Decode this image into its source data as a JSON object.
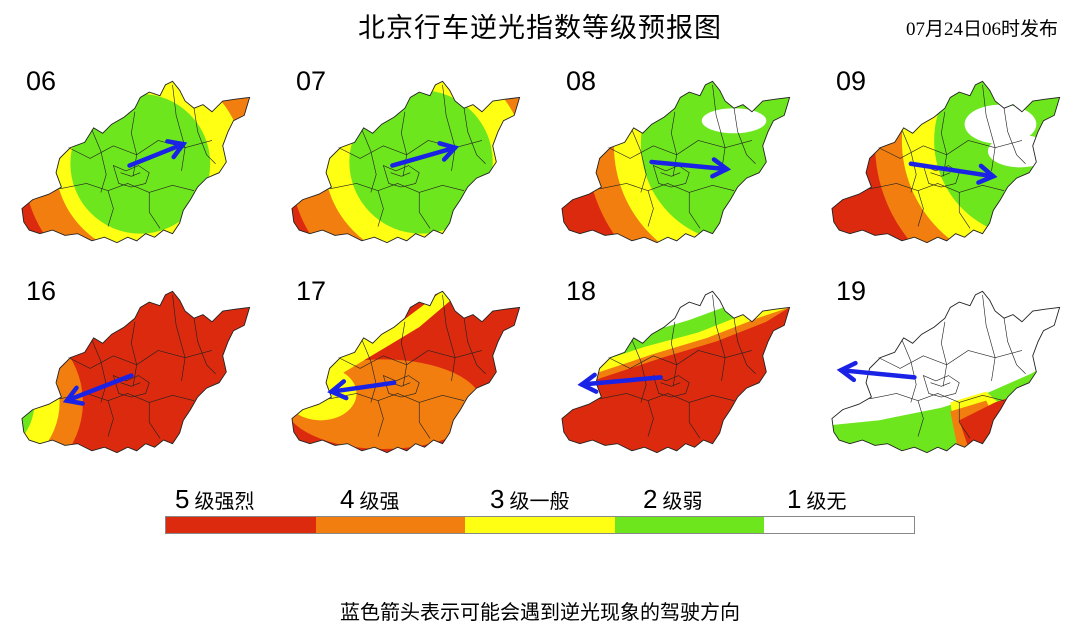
{
  "title": "北京行车逆光指数等级预报图",
  "issued": "07月24日06时发布",
  "colors": {
    "level5": "#dc2a0e",
    "level4": "#f27e10",
    "level3": "#ffff14",
    "level2": "#6de61e",
    "level1": "#ffffff",
    "arrow": "#1a22e6",
    "border": "#222222"
  },
  "panels": [
    {
      "hour": "06",
      "arrow": "east-northeast",
      "levels": [
        5,
        4,
        3,
        2
      ]
    },
    {
      "hour": "07",
      "arrow": "east-northeast",
      "levels": [
        5,
        4,
        3,
        2
      ]
    },
    {
      "hour": "08",
      "arrow": "east",
      "levels": [
        5,
        4,
        3,
        2,
        1
      ]
    },
    {
      "hour": "09",
      "arrow": "east",
      "levels": [
        5,
        4,
        3,
        2,
        1
      ]
    },
    {
      "hour": "16",
      "arrow": "west-southwest",
      "levels": [
        5,
        4,
        3,
        2
      ]
    },
    {
      "hour": "17",
      "arrow": "west",
      "levels": [
        5,
        4,
        3
      ]
    },
    {
      "hour": "18",
      "arrow": "west",
      "levels": [
        5,
        4,
        3,
        2,
        1
      ]
    },
    {
      "hour": "19",
      "arrow": "west-northwest",
      "levels": [
        5,
        4,
        3,
        2,
        1
      ]
    }
  ],
  "legend": [
    {
      "num": "5",
      "label": "级强烈",
      "color": "#dc2a0e"
    },
    {
      "num": "4",
      "label": "级强",
      "color": "#f27e10"
    },
    {
      "num": "3",
      "label": "级一般",
      "color": "#ffff14"
    },
    {
      "num": "2",
      "label": "级弱",
      "color": "#6de61e"
    },
    {
      "num": "1",
      "label": "级无",
      "color": "#ffffff"
    }
  ],
  "note": "蓝色箭头表示可能会遇到逆光现象的驾驶方向"
}
